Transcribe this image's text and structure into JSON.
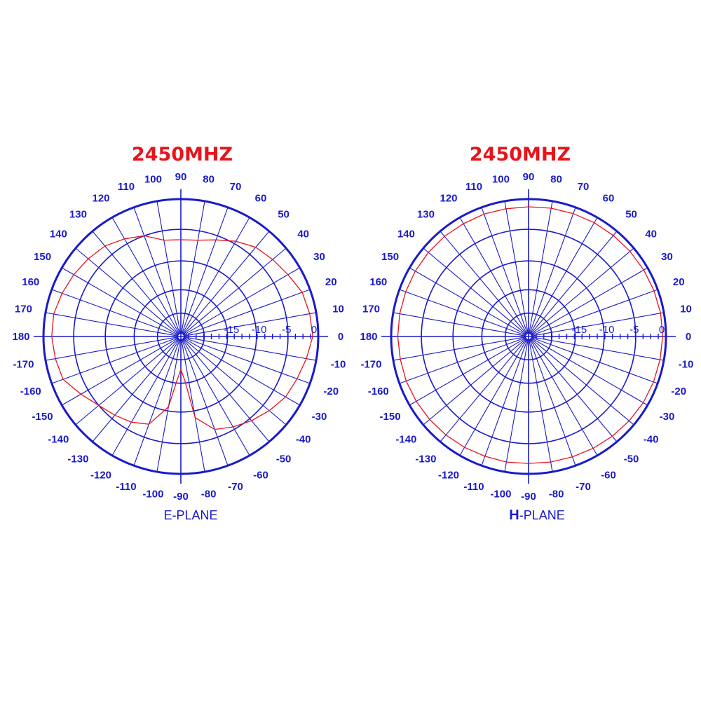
{
  "chart_data": [
    {
      "type": "polar",
      "title": "2450MHZ",
      "plane_label": "E-PLANE",
      "plane_label_lead": "",
      "plane_label_rest": "",
      "angle_unit": "degrees",
      "angle_ticks": [
        "0",
        "10",
        "20",
        "30",
        "40",
        "50",
        "60",
        "70",
        "80",
        "90",
        "100",
        "110",
        "120",
        "130",
        "140",
        "150",
        "160",
        "170",
        "180",
        "-170",
        "-160",
        "-150",
        "-140",
        "-130",
        "-120",
        "-110",
        "-100",
        "-90",
        "-80",
        "-70",
        "-60",
        "-50",
        "-40",
        "-30",
        "-20",
        "-10"
      ],
      "radial_ticks": [
        "-15",
        "-10",
        "-5",
        "0"
      ],
      "radial_range_db": [
        -25,
        0
      ],
      "grid": true,
      "series": [
        {
          "color": "#e8141b",
          "points": [
            {
              "angle": 0,
              "db": -1
            },
            {
              "angle": 10,
              "db": -1.2
            },
            {
              "angle": 20,
              "db": -1.5
            },
            {
              "angle": 30,
              "db": -2.5
            },
            {
              "angle": 40,
              "db": -3.2
            },
            {
              "angle": 50,
              "db": -3.8
            },
            {
              "angle": 60,
              "db": -5
            },
            {
              "angle": 70,
              "db": -6.3
            },
            {
              "angle": 80,
              "db": -7.2
            },
            {
              "angle": 90,
              "db": -7.4
            },
            {
              "angle": 100,
              "db": -7.2
            },
            {
              "angle": 110,
              "db": -5.5
            },
            {
              "angle": 120,
              "db": -4.5
            },
            {
              "angle": 130,
              "db": -3.5
            },
            {
              "angle": 140,
              "db": -3
            },
            {
              "angle": 150,
              "db": -2.5
            },
            {
              "angle": 160,
              "db": -2
            },
            {
              "angle": 170,
              "db": -1.5
            },
            {
              "angle": 180,
              "db": -1.5
            },
            {
              "angle": -170,
              "db": -1.8
            },
            {
              "angle": -160,
              "db": -2.2
            },
            {
              "angle": -150,
              "db": -4
            },
            {
              "angle": -140,
              "db": -5.5
            },
            {
              "angle": -130,
              "db": -6.3
            },
            {
              "angle": -120,
              "db": -7
            },
            {
              "angle": -110,
              "db": -8
            },
            {
              "angle": -100,
              "db": -12
            },
            {
              "angle": -95,
              "db": -17
            },
            {
              "angle": -90,
              "db": -19
            },
            {
              "angle": -85,
              "db": -17
            },
            {
              "angle": -80,
              "db": -10
            },
            {
              "angle": -70,
              "db": -7
            },
            {
              "angle": -60,
              "db": -6
            },
            {
              "angle": -50,
              "db": -5
            },
            {
              "angle": -40,
              "db": -4
            },
            {
              "angle": -30,
              "db": -3
            },
            {
              "angle": -20,
              "db": -2.5
            },
            {
              "angle": -10,
              "db": -1.8
            }
          ]
        }
      ]
    },
    {
      "type": "polar",
      "title": "2450MHZ",
      "plane_label": "",
      "plane_label_lead": "H",
      "plane_label_rest": "-PLANE",
      "angle_unit": "degrees",
      "angle_ticks": [
        "0",
        "10",
        "20",
        "30",
        "40",
        "50",
        "60",
        "70",
        "80",
        "90",
        "100",
        "110",
        "120",
        "130",
        "140",
        "150",
        "160",
        "170",
        "180",
        "-170",
        "-160",
        "-150",
        "-140",
        "-130",
        "-120",
        "-110",
        "-100",
        "-90",
        "-80",
        "-70",
        "-60",
        "-50",
        "-40",
        "-30",
        "-20",
        "-10"
      ],
      "radial_ticks": [
        "-15",
        "-10",
        "-5",
        "0"
      ],
      "radial_range_db": [
        -25,
        0
      ],
      "grid": true,
      "series": [
        {
          "color": "#e8141b",
          "points": [
            {
              "angle": 0,
              "db": -0.6
            },
            {
              "angle": 10,
              "db": -0.6
            },
            {
              "angle": 20,
              "db": -0.7
            },
            {
              "angle": 30,
              "db": -0.8
            },
            {
              "angle": 40,
              "db": -0.9
            },
            {
              "angle": 50,
              "db": -1.0
            },
            {
              "angle": 60,
              "db": -1.1
            },
            {
              "angle": 70,
              "db": -1.2
            },
            {
              "angle": 80,
              "db": -1.3
            },
            {
              "angle": 90,
              "db": -1.4
            },
            {
              "angle": 100,
              "db": -1.4
            },
            {
              "angle": 110,
              "db": -1.3
            },
            {
              "angle": 120,
              "db": -1.3
            },
            {
              "angle": 130,
              "db": -1.2
            },
            {
              "angle": 140,
              "db": -1.2
            },
            {
              "angle": 150,
              "db": -1.2
            },
            {
              "angle": 160,
              "db": -1.2
            },
            {
              "angle": 170,
              "db": -1.2
            },
            {
              "angle": 180,
              "db": -1.2
            },
            {
              "angle": -170,
              "db": -1.3
            },
            {
              "angle": -160,
              "db": -1.3
            },
            {
              "angle": -150,
              "db": -1.4
            },
            {
              "angle": -140,
              "db": -1.5
            },
            {
              "angle": -130,
              "db": -1.6
            },
            {
              "angle": -120,
              "db": -1.7
            },
            {
              "angle": -110,
              "db": -1.8
            },
            {
              "angle": -100,
              "db": -1.8
            },
            {
              "angle": -90,
              "db": -1.9
            },
            {
              "angle": -80,
              "db": -1.8
            },
            {
              "angle": -70,
              "db": -1.7
            },
            {
              "angle": -60,
              "db": -1.5
            },
            {
              "angle": -50,
              "db": -1.3
            },
            {
              "angle": -40,
              "db": -1.1
            },
            {
              "angle": -30,
              "db": -0.9
            },
            {
              "angle": -20,
              "db": -0.8
            },
            {
              "angle": -10,
              "db": -0.7
            }
          ]
        }
      ]
    }
  ]
}
